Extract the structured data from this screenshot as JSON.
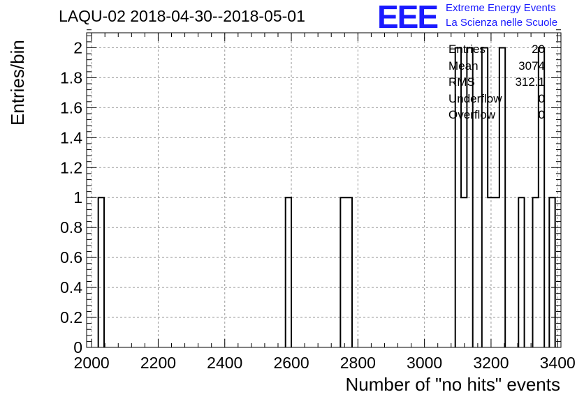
{
  "title": "LAQU-02 2018-04-30--2018-05-01",
  "logo": {
    "text": "EEE",
    "line1": "Extreme Energy Events",
    "line2": "La Scienza nelle Scuole",
    "color": "#1a1aff"
  },
  "stats": [
    {
      "label": "Entries",
      "value": "20"
    },
    {
      "label": "Mean",
      "value": "3074"
    },
    {
      "label": "RMS",
      "value": "312.1"
    },
    {
      "label": "Underflow",
      "value": "0"
    },
    {
      "label": "Overflow",
      "value": "0"
    }
  ],
  "chart_data": {
    "type": "bar",
    "title": "LAQU-02 2018-04-30--2018-05-01",
    "xlabel": "Number of \"no hits\" events",
    "ylabel": "Entries/bin",
    "xlim": [
      1985,
      3410
    ],
    "ylim": [
      0,
      2.1
    ],
    "bin_width": 17.5,
    "bins": [
      {
        "x": 2020,
        "value": 1
      },
      {
        "x": 2582.5,
        "value": 1
      },
      {
        "x": 2747.5,
        "value": 1
      },
      {
        "x": 2765,
        "value": 1
      },
      {
        "x": 3092.5,
        "value": 2
      },
      {
        "x": 3110,
        "value": 1
      },
      {
        "x": 3127.5,
        "value": 2
      },
      {
        "x": 3172.5,
        "value": 2
      },
      {
        "x": 3190,
        "value": 1
      },
      {
        "x": 3207.5,
        "value": 1
      },
      {
        "x": 3225,
        "value": 2
      },
      {
        "x": 3282.5,
        "value": 1
      },
      {
        "x": 3325,
        "value": 1
      },
      {
        "x": 3342.5,
        "value": 2
      },
      {
        "x": 3375,
        "value": 1
      }
    ],
    "x_ticks": [
      2000,
      2200,
      2400,
      2600,
      2800,
      3000,
      3200,
      3400
    ],
    "y_ticks": [
      0,
      0.2,
      0.4,
      0.6,
      0.8,
      1,
      1.2,
      1.4,
      1.6,
      1.8,
      2
    ],
    "y_tick_labels": [
      "0",
      "0.2",
      "0.4",
      "0.6",
      "0.8",
      "1",
      "1.2",
      "1.4",
      "1.6",
      "1.8",
      "2"
    ],
    "grid": true,
    "line_color": "#000000",
    "grid_color": "#9a9a9a"
  }
}
